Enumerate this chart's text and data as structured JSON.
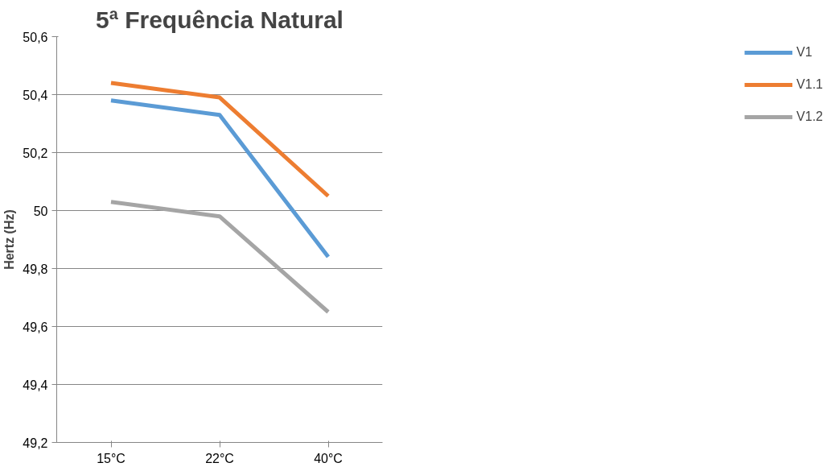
{
  "chart_data": {
    "type": "line",
    "title": "5ª Frequência Natural",
    "ylabel": "Hertz (Hz)",
    "categories": [
      "15°C",
      "22°C",
      "40°C"
    ],
    "series": [
      {
        "name": "V1",
        "color": "#5b9bd5",
        "values": [
          50.38,
          50.33,
          49.84
        ]
      },
      {
        "name": "V1.1",
        "color": "#ed7d31",
        "values": [
          50.44,
          50.39,
          50.05
        ]
      },
      {
        "name": "V1.2",
        "color": "#a5a5a5",
        "values": [
          50.03,
          49.98,
          49.65
        ]
      }
    ],
    "ylim": [
      49.2,
      50.6
    ],
    "yticks": [
      {
        "value": 49.2,
        "label": "49,2"
      },
      {
        "value": 49.4,
        "label": "49,4"
      },
      {
        "value": 49.6,
        "label": "49,6"
      },
      {
        "value": 49.8,
        "label": "49,8"
      },
      50,
      {
        "value": 50.2,
        "label": "50,2"
      },
      {
        "value": 50.4,
        "label": "50,4"
      },
      {
        "value": 50.6,
        "label": "50,6"
      }
    ],
    "grid": "y",
    "legend": "right",
    "marker": "none",
    "line_style": "solid"
  }
}
